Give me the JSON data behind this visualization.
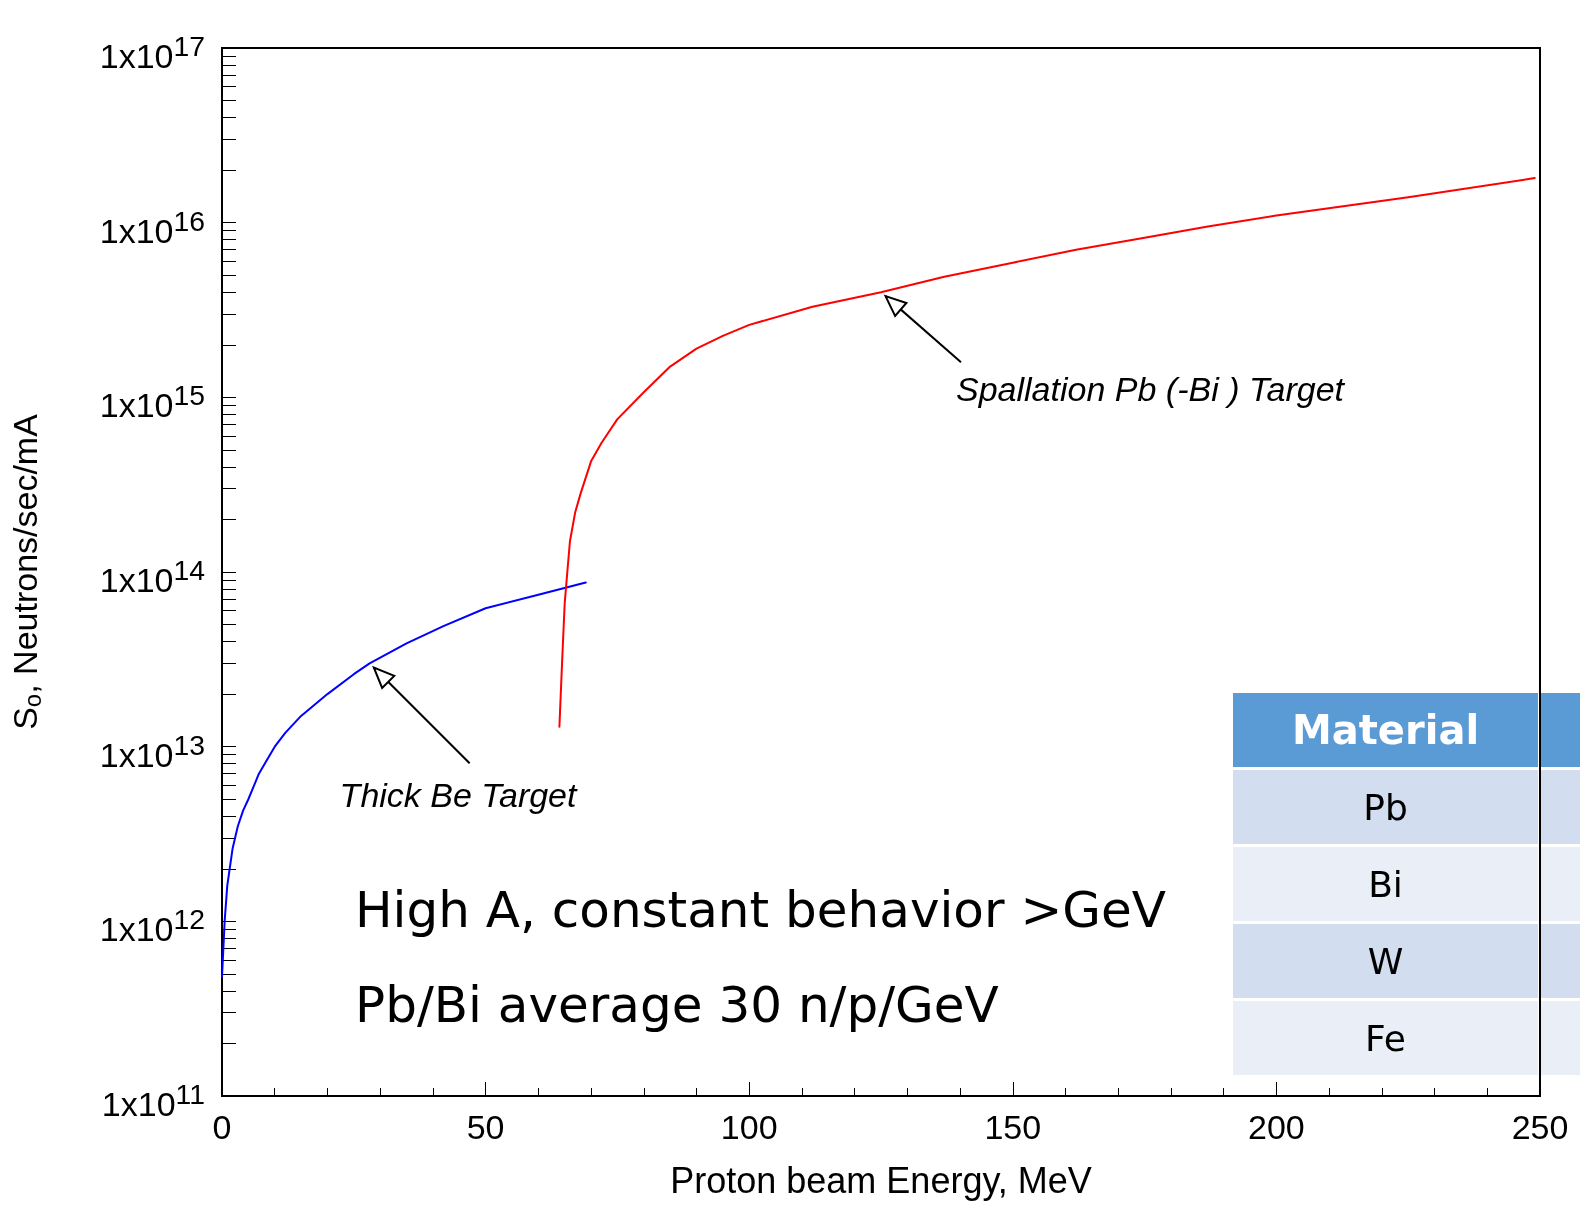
{
  "chart_data": {
    "type": "line",
    "xlabel": "Proton beam Energy, MeV",
    "ylabel": "S$_{o}$, Neutrons/sec/mA",
    "log": "y",
    "grid": false,
    "marker": "none",
    "line_style": "solid",
    "xlim": [
      0,
      250
    ],
    "xticks": [
      0,
      50,
      100,
      150,
      200,
      250
    ],
    "ylim": [
      100000000000.0,
      1e+17
    ],
    "yticks": [
      {
        "value": 100000000000.0,
        "label": "1x10$^{11}$"
      },
      {
        "value": 1000000000000.0,
        "label": "1x10$^{12}$"
      },
      {
        "value": 10000000000000.0,
        "label": "1x10$^{13}$"
      },
      {
        "value": 100000000000000.0,
        "label": "1x10$^{14}$"
      },
      {
        "value": 1000000000000000.0,
        "label": "1x10$^{15}$"
      },
      {
        "value": 1e+16,
        "label": "1x10$^{16}$"
      },
      {
        "value": 1e+17,
        "label": "1x10$^{17}$"
      }
    ],
    "series": [
      {
        "color": "#0000ff",
        "x": [
          0,
          0.5,
          1,
          2,
          3,
          4,
          5,
          7,
          10,
          12,
          15,
          20,
          25,
          28,
          35,
          42,
          50,
          60,
          69
        ],
        "values": [
          480000000000.0,
          1000000000000.0,
          1600000000000.0,
          2600000000000.0,
          3500000000000.0,
          4300000000000.0,
          5000000000000.0,
          7000000000000.0,
          10000000000000.0,
          12000000000000.0,
          15000000000000.0,
          20000000000000.0,
          26000000000000.0,
          30000000000000.0,
          39000000000000.0,
          49000000000000.0,
          62000000000000.0,
          74000000000000.0,
          87000000000000.0
        ]
      },
      {
        "color": "#ff0000",
        "x": [
          64,
          64.5,
          65,
          65.5,
          66,
          67,
          68,
          70,
          72,
          75,
          80,
          85,
          90,
          95,
          100,
          112,
          125,
          137,
          150,
          162,
          175,
          187,
          200,
          225,
          249
        ],
        "values": [
          13000000000000.0,
          30000000000000.0,
          66000000000000.0,
          100000000000000.0,
          150000000000000.0,
          220000000000000.0,
          280000000000000.0,
          430000000000000.0,
          550000000000000.0,
          750000000000000.0,
          1070000000000000.0,
          1500000000000000.0,
          1900000000000000.0,
          2250000000000000.0,
          2600000000000000.0,
          3300000000000000.0,
          4000000000000000.0,
          4900000000000000.0,
          5900000000000000.0,
          7000000000000000.0,
          8200000000000000.0,
          9500000000000000.0,
          1.1e+16,
          1.4e+16,
          1.8e+16
        ]
      }
    ],
    "annotations": [
      {
        "text": "Thick Be Target",
        "x": 28,
        "y": 30000000000000.0
      },
      {
        "text": "Spallation Pb (-Bi ) Target",
        "x": 125,
        "y": 4000000000000000.0
      },
      "High A, constant behavior >GeV",
      "Pb/Bi average 30 n/p/GeV",
      "Material",
      "Pb",
      "Bi",
      "W",
      "Fe"
    ]
  }
}
